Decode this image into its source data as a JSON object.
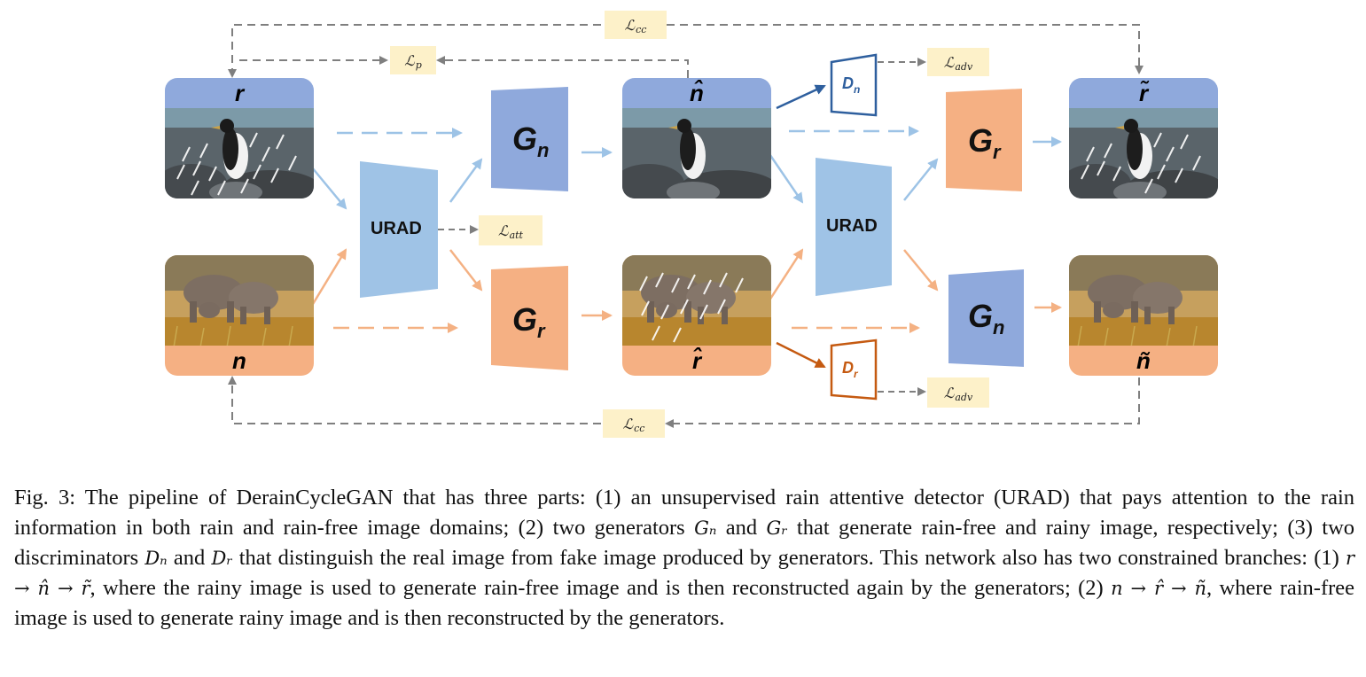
{
  "nodes": {
    "r": {
      "label": "r"
    },
    "n": {
      "label": "n"
    },
    "n_hat": {
      "label": "n̂"
    },
    "r_hat": {
      "label": "r̂"
    },
    "r_tilde": {
      "label": "r̃"
    },
    "n_tilde": {
      "label": "ñ"
    },
    "urad_left": {
      "label": "URAD"
    },
    "urad_right": {
      "label": "URAD"
    },
    "G_n_top": {
      "label": "G",
      "sub": "n"
    },
    "G_r_bottom": {
      "label": "G",
      "sub": "r"
    },
    "G_r_right": {
      "label": "G",
      "sub": "r"
    },
    "G_n_right": {
      "label": "G",
      "sub": "n"
    },
    "D_n": {
      "label": "D",
      "sub": "n"
    },
    "D_r": {
      "label": "D",
      "sub": "r"
    }
  },
  "losses": {
    "cc_top": {
      "label": "ℒ",
      "sub": "cc"
    },
    "p": {
      "label": "ℒ",
      "sub": "p"
    },
    "adv_top": {
      "label": "ℒ",
      "sub": "adv"
    },
    "att": {
      "label": "ℒ",
      "sub": "att"
    },
    "adv_bottom": {
      "label": "ℒ",
      "sub": "adv"
    },
    "cc_bottom": {
      "label": "ℒ",
      "sub": "cc"
    }
  },
  "caption": {
    "text1": "Fig. 3: The pipeline of DerainCycleGAN that has three parts: (1) an unsupervised rain attentive detector (URAD) that pays attention to the rain information in both rain and rain-free image domains; (2) two generators ",
    "m1": "Gₙ",
    "text2": " and ",
    "m2": "Gᵣ",
    "text3": " that generate rain-free and rainy image, respectively; (3) two discriminators ",
    "m3": "Dₙ",
    "text4": " and ",
    "m4": "Dᵣ",
    "text5": " that distinguish the real image from fake image produced by generators. This network also has two constrained branches: (1) ",
    "m5": "r → n̂ → r̃",
    "text6": ", where the rainy image is used to generate rain-free image and is then reconstructed again by the generators; (2) ",
    "m6": "n → r̂ → ñ",
    "text7": ", where rain-free image is used to generate rainy image and is then reconstructed by the generators."
  },
  "colors": {
    "blue_block": "#8fa9dc",
    "light_blue_block": "#9fc3e6",
    "orange_block": "#f5b083",
    "blue_arrow": "#9dc3e6",
    "orange_arrow": "#f4b183",
    "disc_blue": "#2e5f9e",
    "disc_orange": "#c55a11",
    "loss_bg": "#fdf1c9",
    "dashed_gray": "#7f7f7f"
  }
}
